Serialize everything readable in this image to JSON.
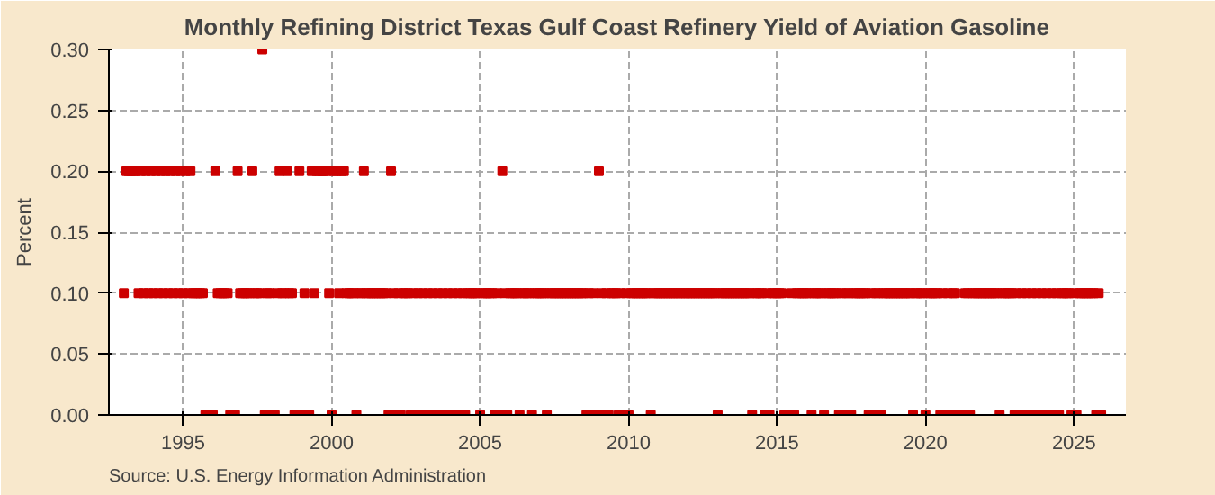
{
  "chart_data": {
    "type": "scatter",
    "title": "Monthly Refining District Texas Gulf Coast Refinery Yield of Aviation Gasoline",
    "ylabel": "Percent",
    "annotations": [
      "Source: U.S. Energy Information Administration"
    ],
    "marker": "square",
    "grid": true,
    "xlim": [
      "1992-07",
      "2026-10"
    ],
    "ylim": [
      0,
      0.3
    ],
    "xticks": [
      {
        "value": "1995-01",
        "label": "1995"
      },
      {
        "value": "2000-01",
        "label": "2000"
      },
      {
        "value": "2005-01",
        "label": "2005"
      },
      {
        "value": "2010-01",
        "label": "2010"
      },
      {
        "value": "2015-01",
        "label": "2015"
      },
      {
        "value": "2020-01",
        "label": "2020"
      },
      {
        "value": "2025-01",
        "label": "2025"
      }
    ],
    "yticks": [
      {
        "value": 0,
        "label": "0.00"
      },
      {
        "value": 0.05,
        "label": "0.05"
      },
      {
        "value": 0.1,
        "label": "0.10"
      },
      {
        "value": 0.15,
        "label": "0.15"
      },
      {
        "value": 0.2,
        "label": "0.20"
      },
      {
        "value": 0.25,
        "label": "0.25"
      },
      {
        "value": 0.3,
        "label": "0.30"
      }
    ],
    "x": [
      "1993-01",
      "1993-02",
      "1993-03",
      "1993-04",
      "1993-05",
      "1993-06",
      "1993-07",
      "1993-08",
      "1993-09",
      "1993-10",
      "1993-11",
      "1993-12",
      "1994-01",
      "1994-02",
      "1994-03",
      "1994-04",
      "1994-05",
      "1994-06",
      "1994-07",
      "1994-08",
      "1994-09",
      "1994-10",
      "1994-11",
      "1994-12",
      "1995-01",
      "1995-02",
      "1995-03",
      "1995-04",
      "1995-05",
      "1995-06",
      "1995-07",
      "1995-08",
      "1995-09",
      "1995-10",
      "1995-11",
      "1995-12",
      "1996-01",
      "1996-02",
      "1996-03",
      "1996-04",
      "1996-05",
      "1996-06",
      "1996-07",
      "1996-08",
      "1996-09",
      "1996-10",
      "1996-11",
      "1996-12",
      "1997-01",
      "1997-02",
      "1997-03",
      "1997-04",
      "1997-05",
      "1997-06",
      "1997-07",
      "1997-08",
      "1997-09",
      "1997-10",
      "1997-11",
      "1997-12",
      "1998-01",
      "1998-02",
      "1998-03",
      "1998-04",
      "1998-05",
      "1998-06",
      "1998-07",
      "1998-08",
      "1998-09",
      "1998-10",
      "1998-11",
      "1998-12",
      "1999-01",
      "1999-02",
      "1999-03",
      "1999-04",
      "1999-05",
      "1999-06",
      "1999-07",
      "1999-08",
      "1999-09",
      "1999-10",
      "1999-11",
      "1999-12",
      "2000-01",
      "2000-02",
      "2000-03",
      "2000-04",
      "2000-05",
      "2000-06",
      "2000-07",
      "2000-08",
      "2000-09",
      "2000-10",
      "2000-11",
      "2000-12",
      "2001-01",
      "2001-02",
      "2001-03",
      "2001-04",
      "2001-05",
      "2001-06",
      "2001-07",
      "2001-08",
      "2001-09",
      "2001-10",
      "2001-11",
      "2001-12",
      "2002-01",
      "2002-02",
      "2002-03",
      "2002-04",
      "2002-05",
      "2002-06",
      "2002-07",
      "2002-08",
      "2002-09",
      "2002-10",
      "2002-11",
      "2002-12",
      "2003-01",
      "2003-02",
      "2003-03",
      "2003-04",
      "2003-05",
      "2003-06",
      "2003-07",
      "2003-08",
      "2003-09",
      "2003-10",
      "2003-11",
      "2003-12",
      "2004-01",
      "2004-02",
      "2004-03",
      "2004-04",
      "2004-05",
      "2004-06",
      "2004-07",
      "2004-08",
      "2004-09",
      "2004-10",
      "2004-11",
      "2004-12",
      "2005-01",
      "2005-02",
      "2005-03",
      "2005-04",
      "2005-05",
      "2005-06",
      "2005-07",
      "2005-08",
      "2005-09",
      "2005-10",
      "2005-11",
      "2005-12",
      "2006-01",
      "2006-02",
      "2006-03",
      "2006-04",
      "2006-05",
      "2006-06",
      "2006-07",
      "2006-08",
      "2006-09",
      "2006-10",
      "2006-11",
      "2006-12",
      "2007-01",
      "2007-02",
      "2007-03",
      "2007-04",
      "2007-05",
      "2007-06",
      "2007-07",
      "2007-08",
      "2007-09",
      "2007-10",
      "2007-11",
      "2007-12",
      "2008-01",
      "2008-02",
      "2008-03",
      "2008-04",
      "2008-05",
      "2008-06",
      "2008-07",
      "2008-08",
      "2008-09",
      "2008-10",
      "2008-11",
      "2008-12",
      "2009-01",
      "2009-02",
      "2009-03",
      "2009-04",
      "2009-05",
      "2009-06",
      "2009-07",
      "2009-08",
      "2009-09",
      "2009-10",
      "2009-11",
      "2009-12",
      "2010-01",
      "2010-02",
      "2010-03",
      "2010-04",
      "2010-05",
      "2010-06",
      "2010-07",
      "2010-08",
      "2010-09",
      "2010-10",
      "2010-11",
      "2010-12",
      "2011-01",
      "2011-02",
      "2011-03",
      "2011-04",
      "2011-05",
      "2011-06",
      "2011-07",
      "2011-08",
      "2011-09",
      "2011-10",
      "2011-11",
      "2011-12",
      "2012-01",
      "2012-02",
      "2012-03",
      "2012-04",
      "2012-05",
      "2012-06",
      "2012-07",
      "2012-08",
      "2012-09",
      "2012-10",
      "2012-11",
      "2012-12",
      "2013-01",
      "2013-02",
      "2013-03",
      "2013-04",
      "2013-05",
      "2013-06",
      "2013-07",
      "2013-08",
      "2013-09",
      "2013-10",
      "2013-11",
      "2013-12",
      "2014-01",
      "2014-02",
      "2014-03",
      "2014-04",
      "2014-05",
      "2014-06",
      "2014-07",
      "2014-08",
      "2014-09",
      "2014-10",
      "2014-11",
      "2014-12",
      "2015-01",
      "2015-02",
      "2015-03",
      "2015-04",
      "2015-05",
      "2015-06",
      "2015-07",
      "2015-08",
      "2015-09",
      "2015-10",
      "2015-11",
      "2015-12",
      "2016-01",
      "2016-02",
      "2016-03",
      "2016-04",
      "2016-05",
      "2016-06",
      "2016-07",
      "2016-08",
      "2016-09",
      "2016-10",
      "2016-11",
      "2016-12",
      "2017-01",
      "2017-02",
      "2017-03",
      "2017-04",
      "2017-05",
      "2017-06",
      "2017-07",
      "2017-08",
      "2017-09",
      "2017-10",
      "2017-11",
      "2017-12",
      "2018-01",
      "2018-02",
      "2018-03",
      "2018-04",
      "2018-05",
      "2018-06",
      "2018-07",
      "2018-08",
      "2018-09",
      "2018-10",
      "2018-11",
      "2018-12",
      "2019-01",
      "2019-02",
      "2019-03",
      "2019-04",
      "2019-05",
      "2019-06",
      "2019-07",
      "2019-08",
      "2019-09",
      "2019-10",
      "2019-11",
      "2019-12",
      "2020-01",
      "2020-02",
      "2020-03",
      "2020-04",
      "2020-05",
      "2020-06",
      "2020-07",
      "2020-08",
      "2020-09",
      "2020-10",
      "2020-11",
      "2020-12",
      "2021-01",
      "2021-02",
      "2021-03",
      "2021-04",
      "2021-05",
      "2021-06",
      "2021-07",
      "2021-08",
      "2021-09",
      "2021-10",
      "2021-11",
      "2021-12",
      "2022-01",
      "2022-02",
      "2022-03",
      "2022-04",
      "2022-05",
      "2022-06",
      "2022-07",
      "2022-08",
      "2022-09",
      "2022-10",
      "2022-11",
      "2022-12",
      "2023-01",
      "2023-02",
      "2023-03",
      "2023-04",
      "2023-05",
      "2023-06",
      "2023-07",
      "2023-08",
      "2023-09",
      "2023-10",
      "2023-11",
      "2023-12",
      "2024-01",
      "2024-02",
      "2024-03",
      "2024-04",
      "2024-05",
      "2024-06",
      "2024-07",
      "2024-08",
      "2024-09",
      "2024-10",
      "2024-11",
      "2024-12",
      "2025-01",
      "2025-02",
      "2025-03",
      "2025-04",
      "2025-05",
      "2025-06",
      "2025-07",
      "2025-08",
      "2025-09",
      "2025-10",
      "2025-11",
      "2025-12"
    ],
    "series": [
      {
        "color": "#cc0000",
        "values": [
          0.1,
          0.2,
          0.2,
          0.2,
          0.2,
          0.2,
          0.1,
          0.2,
          0.1,
          0.2,
          0.1,
          0.2,
          0.1,
          0.2,
          0.1,
          0.2,
          0.1,
          0.2,
          0.1,
          0.2,
          0.1,
          0.2,
          0.1,
          0.2,
          0.1,
          0.2,
          0.1,
          0.2,
          0.1,
          0.1,
          0.1,
          0.1,
          0.1,
          0,
          0,
          0,
          0,
          0.2,
          0.1,
          0.1,
          0.1,
          0.1,
          0.1,
          0,
          0,
          0,
          0.2,
          0.1,
          0.1,
          0.1,
          0.1,
          0.1,
          0.2,
          0.1,
          0.1,
          0.1,
          0.3,
          0,
          0.1,
          0.1,
          0,
          0,
          0.1,
          0.2,
          0.1,
          0.1,
          0.2,
          0.1,
          0.1,
          0,
          0,
          0.2,
          0,
          0.1,
          0,
          0,
          0.2,
          0.1,
          0.2,
          0.2,
          0.2,
          0.2,
          0.2,
          0.1,
          0,
          0.2,
          0.2,
          0.1,
          0.2,
          0.2,
          0.1,
          0.1,
          0.1,
          0.1,
          0,
          0.1,
          0.1,
          0.2,
          0.1,
          0.1,
          0.1,
          0.1,
          0.1,
          0.1,
          0.1,
          0.1,
          0.1,
          0,
          0.2,
          0.1,
          0,
          0.1,
          0,
          0.1,
          0.1,
          0.1,
          0,
          0.1,
          0,
          0.1,
          0,
          0.1,
          0,
          0.1,
          0,
          0.1,
          0,
          0.1,
          0,
          0.1,
          0,
          0.1,
          0,
          0.1,
          0,
          0.1,
          0,
          0.1,
          0,
          0.1,
          0.1,
          0.1,
          0.1,
          0.1,
          0,
          0.1,
          0.1,
          0.1,
          0.1,
          0.1,
          0,
          0.1,
          0,
          0.2,
          0.1,
          0,
          0.1,
          0.1,
          0.1,
          0.1,
          0,
          0.1,
          0.1,
          0.1,
          0.1,
          0,
          0.1,
          0.1,
          0.1,
          0.1,
          0.1,
          0,
          0.1,
          0.1,
          0.1,
          0.1,
          0.1,
          0.1,
          0.1,
          0.1,
          0.1,
          0.1,
          0.1,
          0.1,
          0.1,
          0.1,
          0.1,
          0,
          0.1,
          0,
          0.1,
          0,
          0.2,
          0.1,
          0,
          0.1,
          0,
          0.1,
          0.1,
          0.1,
          0,
          0.1,
          0,
          0.1,
          0,
          0.1,
          0.1,
          0.1,
          0.1,
          0.1,
          0.1,
          0.1,
          0.1,
          0,
          0.1,
          0.1,
          0.1,
          0.1,
          0.1,
          0.1,
          0.1,
          0.1,
          0.1,
          0.1,
          0.1,
          0.1,
          0.1,
          0.1,
          0.1,
          0.1,
          0.1,
          0.1,
          0.1,
          0.1,
          0.1,
          0.1,
          0.1,
          0.1,
          0.1,
          0.1,
          0,
          0.1,
          0.1,
          0.1,
          0.1,
          0.1,
          0.1,
          0.1,
          0.1,
          0.1,
          0.1,
          0.1,
          0.1,
          0.1,
          0,
          0.1,
          0.1,
          0.1,
          0.1,
          0,
          0.1,
          0,
          0.1,
          0.1,
          0.1,
          0.1,
          0.1,
          0,
          0,
          0,
          0.1,
          0,
          0.1,
          0.1,
          0.1,
          0.1,
          0.1,
          0.1,
          0,
          0.1,
          0.1,
          0.1,
          0.1,
          0,
          0.1,
          0.1,
          0.1,
          0.1,
          0.1,
          0,
          0.1,
          0,
          0.1,
          0.1,
          0,
          0.1,
          0.1,
          0.1,
          0.1,
          0.1,
          0.1,
          0,
          0.1,
          0,
          0.1,
          0.1,
          0,
          0.1,
          0.1,
          0.1,
          0.1,
          0.1,
          0.1,
          0.1,
          0.1,
          0.1,
          0.1,
          0.1,
          0.1,
          0,
          0.1,
          0.1,
          0.1,
          0.1,
          0,
          0.1,
          0.1,
          0.1,
          0.1,
          0.1,
          0,
          0.1,
          0,
          0.1,
          0,
          0.1,
          0.1,
          0,
          0,
          0,
          0.1,
          0.1,
          0,
          0.1,
          0.1,
          0.1,
          0.1,
          0.1,
          0.1,
          0.1,
          0.1,
          0.1,
          0.1,
          0.1,
          0,
          0.1,
          0.1,
          0.1,
          0.1,
          0.1,
          0,
          0.1,
          0,
          0.1,
          0,
          0.1,
          0,
          0.1,
          0,
          0.1,
          0,
          0.1,
          0,
          0.1,
          0,
          0.1,
          0,
          0.1,
          0,
          0.1,
          0.1,
          0.1,
          0.1,
          0,
          0.1,
          0,
          0.1,
          0.1,
          0.1,
          0.1,
          0.1,
          0.1,
          0.1,
          0,
          0.1,
          0
        ]
      }
    ]
  }
}
